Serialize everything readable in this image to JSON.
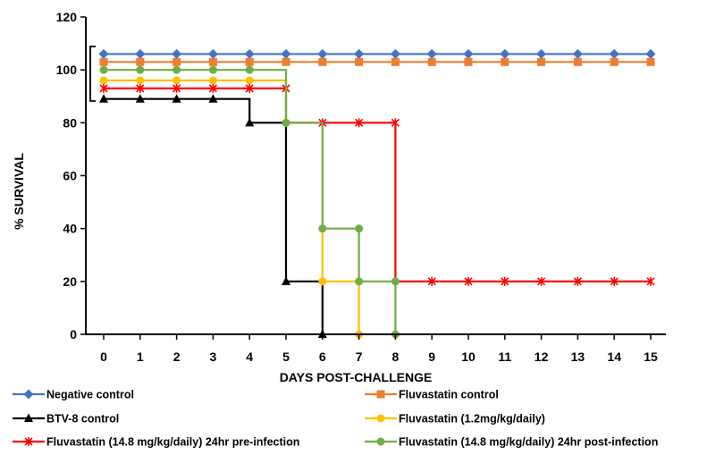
{
  "chart_data": {
    "type": "line",
    "title": "",
    "xlabel": "DAYS POST-CHALLENGE",
    "ylabel": "% SURVIVAL",
    "x": [
      0,
      1,
      2,
      3,
      4,
      5,
      6,
      7,
      8,
      9,
      10,
      11,
      12,
      13,
      14,
      15
    ],
    "xlim": [
      0,
      15
    ],
    "ylim": [
      0,
      120
    ],
    "yticks": [
      0,
      20,
      40,
      60,
      80,
      100,
      120
    ],
    "step": true,
    "grid": false,
    "bracket_label": "",
    "series": [
      {
        "name": "Negative control",
        "color": "#4472C4",
        "marker": "diamond",
        "points": [
          [
            0,
            106
          ],
          [
            1,
            106
          ],
          [
            2,
            106
          ],
          [
            3,
            106
          ],
          [
            4,
            106
          ],
          [
            5,
            106
          ],
          [
            6,
            106
          ],
          [
            7,
            106
          ],
          [
            8,
            106
          ],
          [
            9,
            106
          ],
          [
            10,
            106
          ],
          [
            11,
            106
          ],
          [
            12,
            106
          ],
          [
            13,
            106
          ],
          [
            14,
            106
          ],
          [
            15,
            106
          ]
        ]
      },
      {
        "name": "Fluvastatin control",
        "color": "#ED7D31",
        "marker": "square",
        "points": [
          [
            0,
            103
          ],
          [
            1,
            103
          ],
          [
            2,
            103
          ],
          [
            3,
            103
          ],
          [
            4,
            103
          ],
          [
            5,
            103
          ],
          [
            6,
            103
          ],
          [
            7,
            103
          ],
          [
            8,
            103
          ],
          [
            9,
            103
          ],
          [
            10,
            103
          ],
          [
            11,
            103
          ],
          [
            12,
            103
          ],
          [
            13,
            103
          ],
          [
            14,
            103
          ],
          [
            15,
            103
          ]
        ]
      },
      {
        "name": "BTV-8 control",
        "color": "#000000",
        "marker": "triangle",
        "points": [
          [
            0,
            89
          ],
          [
            1,
            89
          ],
          [
            2,
            89
          ],
          [
            3,
            89
          ],
          [
            4,
            80
          ],
          [
            5,
            20
          ],
          [
            6,
            0
          ]
        ]
      },
      {
        "name": "Fluvastatin (1.2mg/kg/daily)",
        "color": "#FFC000",
        "marker": "circle",
        "points": [
          [
            0,
            96
          ],
          [
            1,
            96
          ],
          [
            2,
            96
          ],
          [
            3,
            96
          ],
          [
            4,
            96
          ],
          [
            5,
            80
          ],
          [
            6,
            20
          ],
          [
            7,
            0
          ]
        ]
      },
      {
        "name": "Fluvastatin (14.8 mg/kg/daily) 24hr pre-infection",
        "color": "#FF0000",
        "marker": "star",
        "points": [
          [
            0,
            93
          ],
          [
            1,
            93
          ],
          [
            2,
            93
          ],
          [
            3,
            93
          ],
          [
            4,
            93
          ],
          [
            5,
            93
          ],
          [
            6,
            80
          ],
          [
            7,
            80
          ],
          [
            8,
            80
          ],
          [
            9,
            20
          ],
          [
            10,
            20
          ],
          [
            11,
            20
          ],
          [
            12,
            20
          ],
          [
            13,
            20
          ],
          [
            14,
            20
          ],
          [
            15,
            20
          ]
        ],
        "segments": [
          [
            [
              0,
              93
            ],
            [
              5,
              93
            ]
          ],
          [
            [
              5,
              80
            ],
            [
              8,
              80
            ]
          ],
          [
            [
              8,
              20
            ],
            [
              15,
              20
            ]
          ]
        ]
      },
      {
        "name": "Fluvastatin (14.8 mg/kg/daily) 24hr post-infection",
        "color": "#70AD47",
        "marker": "circle",
        "points": [
          [
            0,
            100
          ],
          [
            1,
            100
          ],
          [
            2,
            100
          ],
          [
            3,
            100
          ],
          [
            4,
            100
          ],
          [
            5,
            80
          ],
          [
            6,
            40
          ],
          [
            7,
            40
          ],
          [
            7,
            20
          ],
          [
            8,
            20
          ],
          [
            8,
            0
          ]
        ],
        "segments": [
          [
            [
              0,
              100
            ],
            [
              5,
              100
            ],
            [
              5,
              80
            ],
            [
              6,
              80
            ],
            [
              6,
              40
            ],
            [
              7,
              40
            ],
            [
              7,
              20
            ],
            [
              8,
              20
            ],
            [
              8,
              0
            ]
          ]
        ]
      }
    ]
  }
}
